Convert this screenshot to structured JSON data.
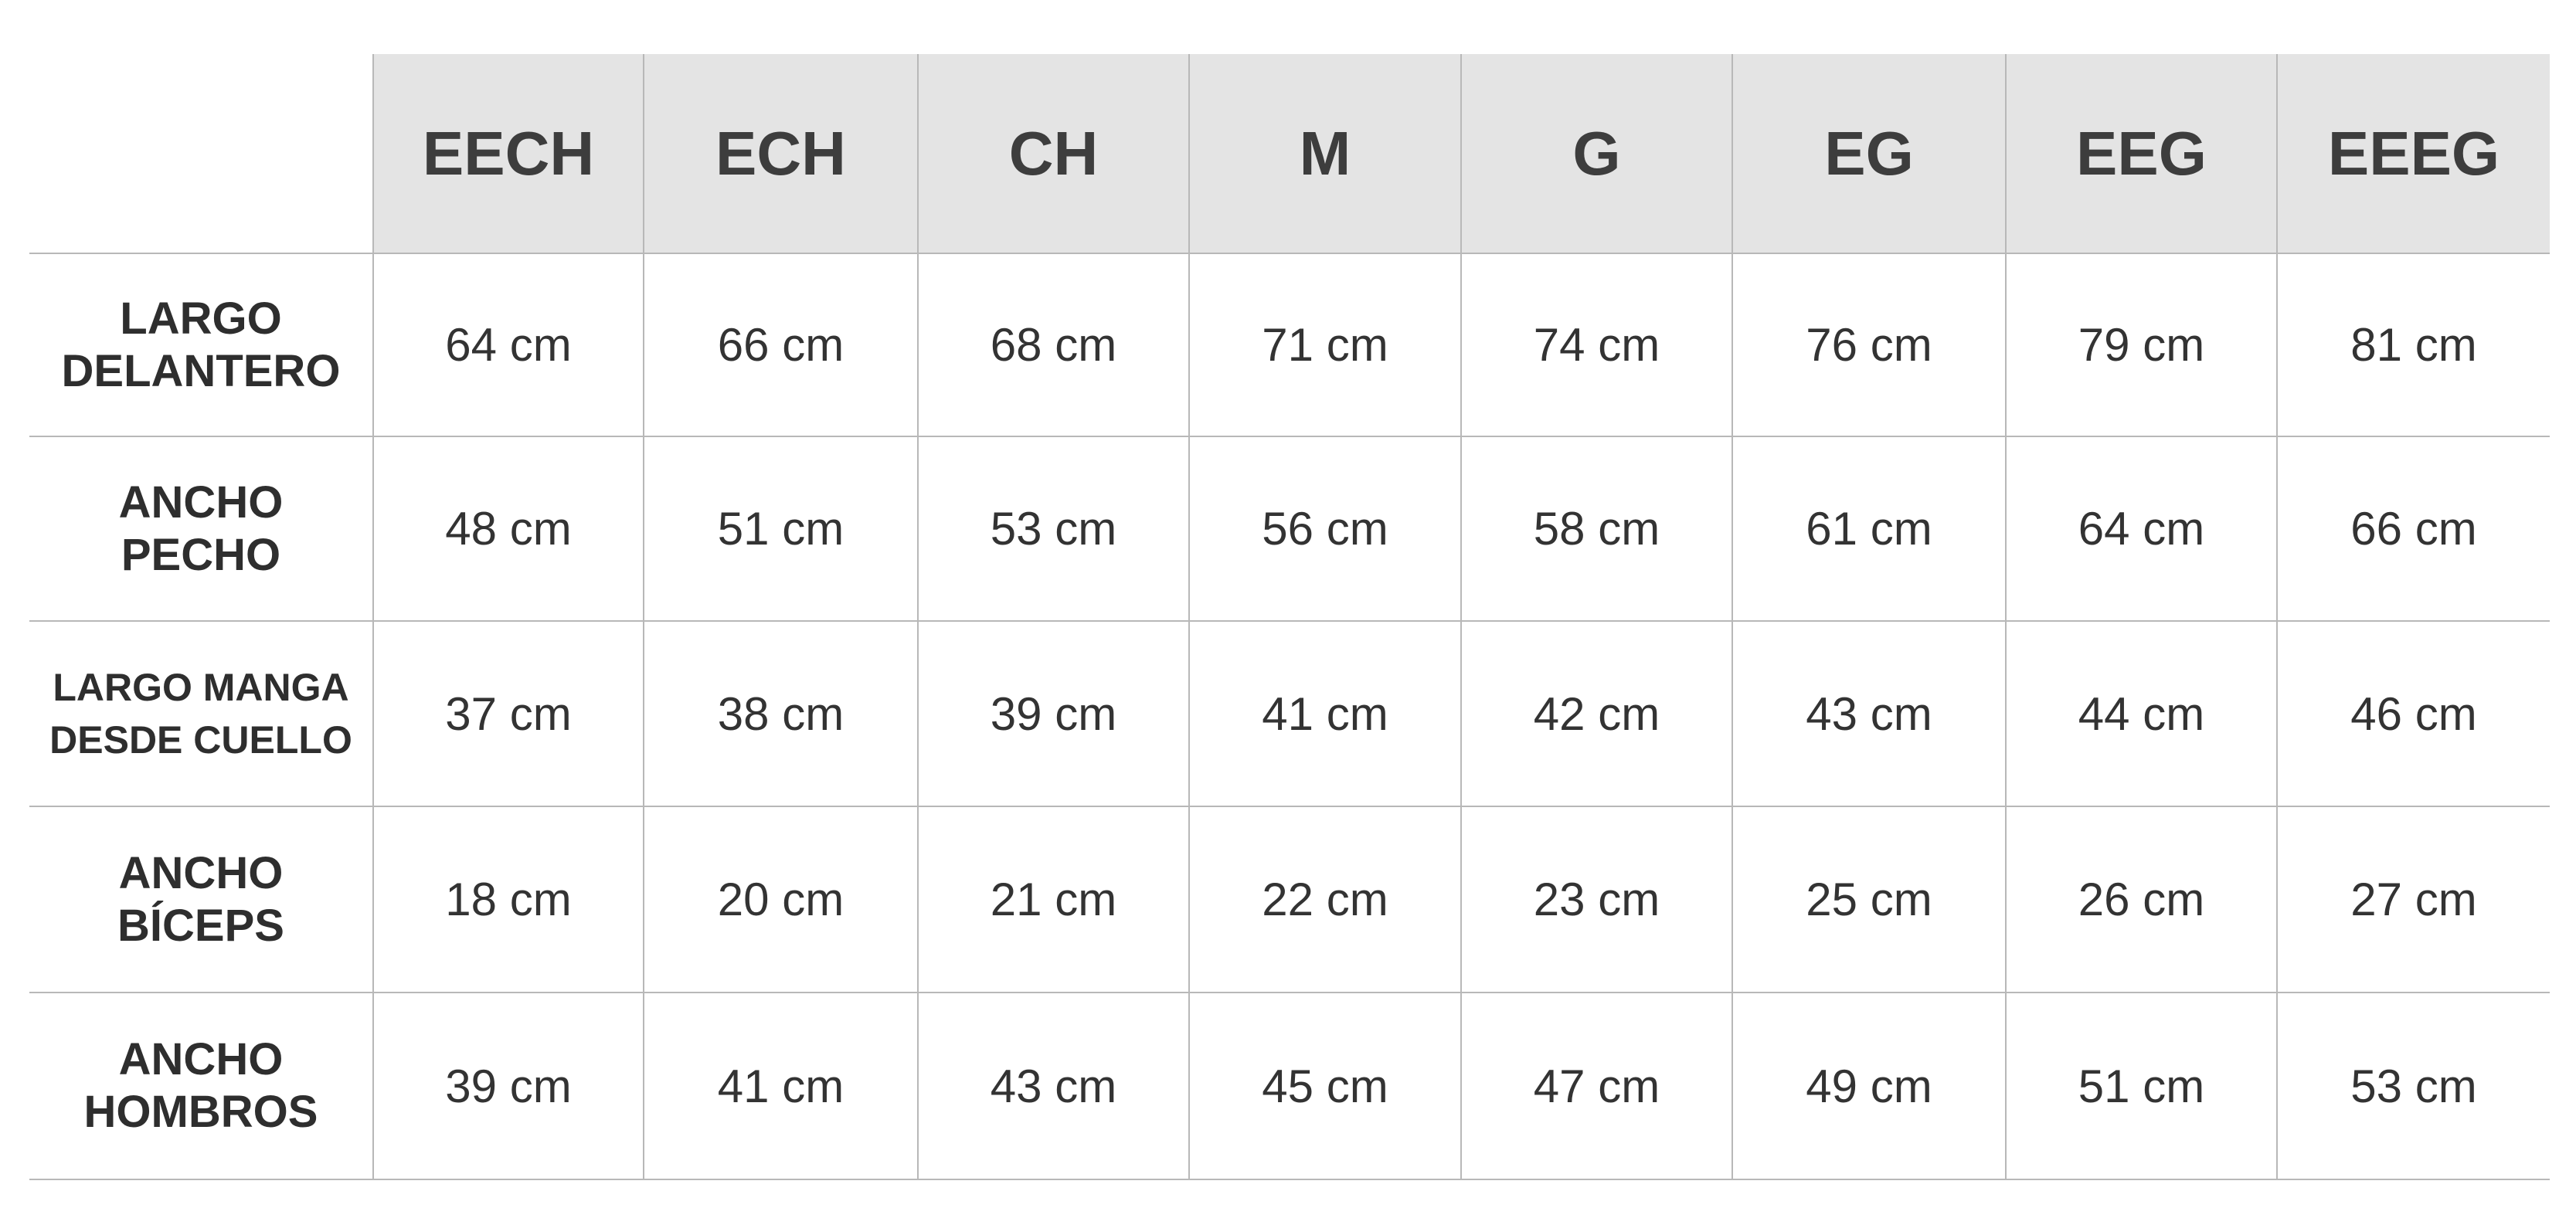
{
  "header": {
    "sizes": [
      "EECH",
      "ECH",
      "CH",
      "M",
      "G",
      "EG",
      "EEG",
      "EEEG"
    ]
  },
  "rows": [
    {
      "label_line1": "LARGO",
      "label_line2": "DELANTERO",
      "values": [
        "64 cm",
        "66 cm",
        "68 cm",
        "71 cm",
        "74 cm",
        "76 cm",
        "79 cm",
        "81 cm"
      ]
    },
    {
      "label_line1": "ANCHO",
      "label_line2": "PECHO",
      "values": [
        "48 cm",
        "51 cm",
        "53 cm",
        "56 cm",
        "58 cm",
        "61 cm",
        "64 cm",
        "66 cm"
      ]
    },
    {
      "label_line1": "LARGO MANGA",
      "label_line2": "DESDE CUELLO",
      "values": [
        "37 cm",
        "38 cm",
        "39 cm",
        "41 cm",
        "42 cm",
        "43 cm",
        "44 cm",
        "46 cm"
      ]
    },
    {
      "label_line1": "ANCHO",
      "label_line2": "BÍCEPS",
      "values": [
        "18 cm",
        "20 cm",
        "21 cm",
        "22 cm",
        "23 cm",
        "25 cm",
        "26 cm",
        "27 cm"
      ]
    },
    {
      "label_line1": "ANCHO",
      "label_line2": "HOMBROS",
      "values": [
        "39 cm",
        "41 cm",
        "43 cm",
        "45 cm",
        "47 cm",
        "49 cm",
        "51 cm",
        "53 cm"
      ]
    }
  ],
  "colors": {
    "header_bg": "#e4e4e4",
    "grid": "#b8b8b8",
    "text": "#333333"
  }
}
